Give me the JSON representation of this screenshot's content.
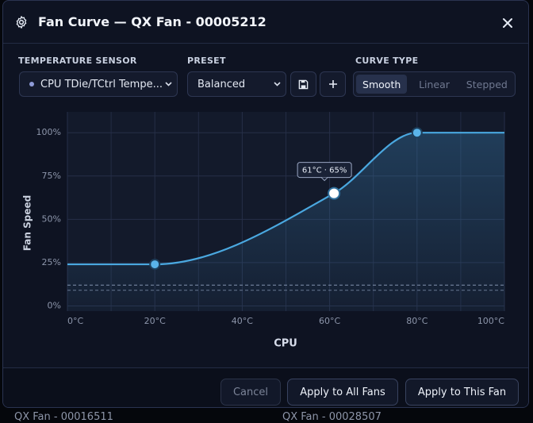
{
  "header": {
    "title": "Fan Curve — QX Fan - 00005212"
  },
  "controls": {
    "sensor_label": "TEMPERATURE SENSOR",
    "sensor_value": "CPU TDie/TCtrl Tempe...",
    "preset_label": "PRESET",
    "preset_value": "Balanced",
    "curve_type_label": "CURVE TYPE",
    "curve_types": [
      "Smooth",
      "Linear",
      "Stepped"
    ],
    "active_curve_type": 0
  },
  "chart_data": {
    "type": "line",
    "xlabel": "CPU",
    "ylabel": "Fan Speed",
    "x": [
      0,
      20,
      61,
      80,
      100
    ],
    "values": [
      24,
      24,
      65,
      100,
      100
    ],
    "color": "#4aa8e0",
    "xlim": [
      0,
      100
    ],
    "ylim": [
      -3,
      112
    ],
    "xticks": [
      {
        "value": 0,
        "label": "0°C"
      },
      {
        "value": 20,
        "label": "20°C"
      },
      {
        "value": 40,
        "label": "40°C"
      },
      {
        "value": 60,
        "label": "60°C"
      },
      {
        "value": 80,
        "label": "80°C"
      },
      {
        "value": 100,
        "label": "100°C"
      }
    ],
    "yticks": [
      {
        "value": 0,
        "label": "0%"
      },
      {
        "value": 25,
        "label": "25%"
      },
      {
        "value": 50,
        "label": "50%"
      },
      {
        "value": 75,
        "label": "75%"
      },
      {
        "value": 100,
        "label": "100%"
      }
    ],
    "grid": true,
    "reference_lines": [
      12,
      9
    ],
    "selected_point": 2,
    "tooltip": "61°C · 65%"
  },
  "footer": {
    "buttons": [
      "Cancel",
      "Apply to All Fans",
      "Apply to This Fan"
    ]
  },
  "background": {
    "items": [
      "QX Fan - 00016511",
      "QX Fan - 00028507"
    ]
  }
}
